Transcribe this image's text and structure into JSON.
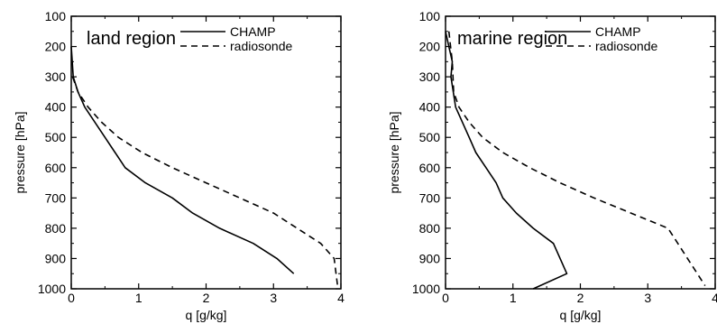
{
  "chart_data": [
    {
      "type": "line",
      "title": "land region",
      "xlabel": "q [g/kg]",
      "ylabel": "pressure [hPa]",
      "xlim": [
        0,
        4
      ],
      "ylim": [
        1000,
        100
      ],
      "y_inverted": true,
      "xticks": [
        "0",
        "1",
        "2",
        "3",
        "4"
      ],
      "yticks": [
        "100",
        "200",
        "300",
        "400",
        "500",
        "600",
        "700",
        "800",
        "900",
        "1000"
      ],
      "legend_position": "top-right",
      "grid": false,
      "series": [
        {
          "name": "CHAMP",
          "style": "solid",
          "x": [
            0.0,
            0.03,
            0.1,
            0.2,
            0.35,
            0.5,
            0.65,
            0.8,
            1.1,
            1.5,
            1.8,
            2.2,
            2.7,
            3.05,
            3.3
          ],
          "y": [
            200,
            300,
            350,
            400,
            450,
            500,
            550,
            600,
            650,
            700,
            750,
            800,
            850,
            900,
            950
          ]
        },
        {
          "name": "radiosonde",
          "style": "dashed",
          "x": [
            0.02,
            0.1,
            0.25,
            0.45,
            0.7,
            1.05,
            1.5,
            2.0,
            2.5,
            3.0,
            3.35,
            3.7,
            3.9,
            3.95
          ],
          "y": [
            300,
            350,
            400,
            450,
            500,
            550,
            600,
            650,
            700,
            750,
            800,
            850,
            900,
            990
          ]
        }
      ]
    },
    {
      "type": "line",
      "title": "marine region",
      "xlabel": "q [g/kg]",
      "ylabel": "pressure [hPa]",
      "xlim": [
        0,
        4
      ],
      "ylim": [
        1000,
        100
      ],
      "y_inverted": true,
      "xticks": [
        "0",
        "1",
        "2",
        "3",
        "4"
      ],
      "yticks": [
        "100",
        "200",
        "300",
        "400",
        "500",
        "600",
        "700",
        "800",
        "900",
        "1000"
      ],
      "legend_position": "top-right",
      "grid": false,
      "series": [
        {
          "name": "CHAMP",
          "style": "solid",
          "x": [
            0.0,
            0.05,
            0.1,
            0.08,
            0.15,
            0.25,
            0.35,
            0.45,
            0.6,
            0.75,
            0.85,
            1.05,
            1.3,
            1.6,
            1.8,
            1.3
          ],
          "y": [
            150,
            200,
            250,
            300,
            400,
            450,
            500,
            550,
            600,
            650,
            700,
            750,
            800,
            850,
            950,
            1000
          ]
        },
        {
          "name": "radiosonde",
          "style": "dashed",
          "x": [
            0.05,
            0.1,
            0.12,
            0.2,
            0.35,
            0.55,
            0.85,
            1.25,
            1.7,
            2.2,
            2.75,
            3.3,
            3.85
          ],
          "y": [
            150,
            250,
            350,
            400,
            450,
            500,
            550,
            600,
            650,
            700,
            750,
            800,
            990
          ]
        }
      ]
    }
  ]
}
